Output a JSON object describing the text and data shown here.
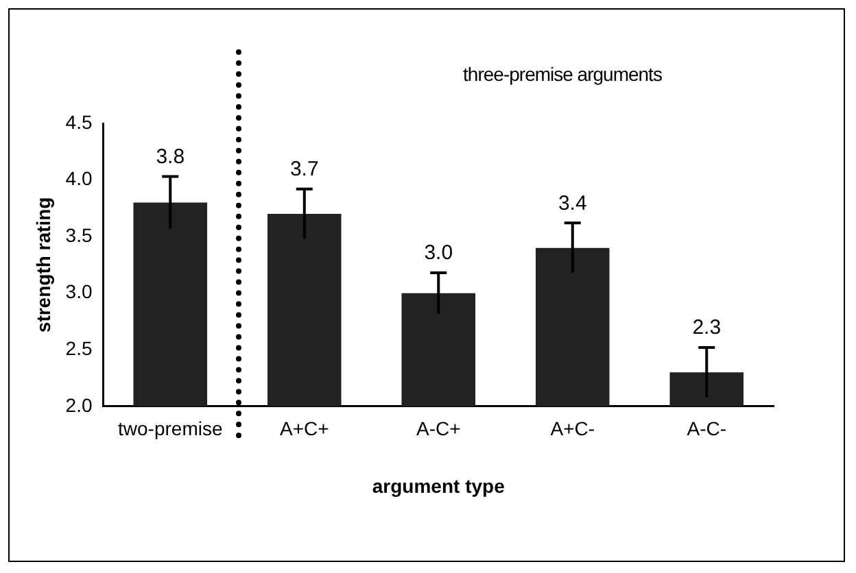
{
  "chart_data": {
    "type": "bar",
    "xlabel": "argument type",
    "ylabel": "strength rating",
    "categories": [
      "two-premise",
      "A+C+",
      "A-C+",
      "A+C-",
      "A-C-"
    ],
    "values": [
      3.8,
      3.7,
      3.0,
      3.4,
      2.3
    ],
    "errors": [
      0.23,
      0.22,
      0.18,
      0.22,
      0.22
    ],
    "value_labels": [
      "3.8",
      "3.7",
      "3.0",
      "3.4",
      "2.3"
    ],
    "color": "#222222",
    "ylim": [
      2.0,
      4.5
    ],
    "yticks": [
      {
        "value": 2.0,
        "label": "2.0"
      },
      {
        "value": 2.5,
        "label": "2.5"
      },
      {
        "value": 3.0,
        "label": "3.0"
      },
      {
        "value": 3.5,
        "label": "3.5"
      },
      {
        "value": 4.0,
        "label": "4.0"
      },
      {
        "value": 4.5,
        "label": "4.5"
      }
    ],
    "grid": false,
    "legend": false,
    "annotations": [
      "three-premise arguments"
    ]
  }
}
